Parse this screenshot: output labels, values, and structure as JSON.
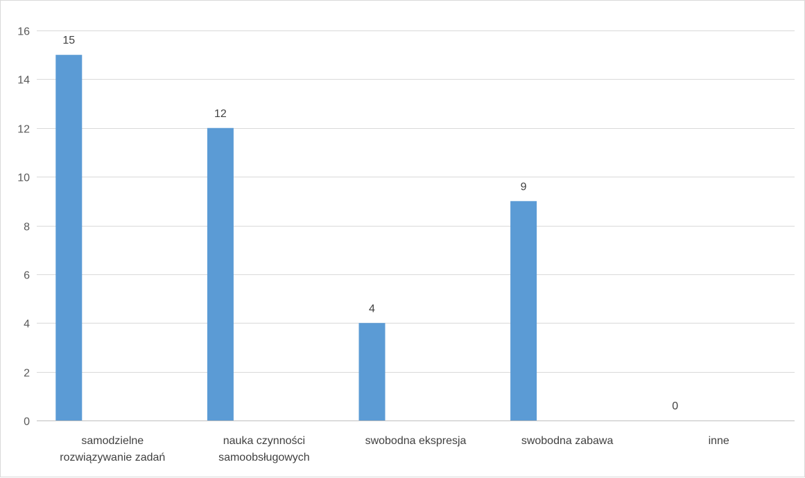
{
  "chart_data": {
    "type": "bar",
    "categories": [
      [
        "samodzielne",
        "rozwiązywanie zadań"
      ],
      [
        "nauka czynności",
        "samoobsługowych"
      ],
      [
        "swobodna ekspresja"
      ],
      [
        "swobodna zabawa"
      ],
      [
        "inne"
      ]
    ],
    "values": [
      15,
      12,
      4,
      9,
      0
    ],
    "data_labels": [
      "15",
      "12",
      "4",
      "9",
      "0"
    ],
    "ylim": [
      0,
      16
    ],
    "yticks": [
      0,
      2,
      4,
      6,
      8,
      10,
      12,
      14,
      16
    ],
    "title": "",
    "xlabel": "",
    "ylabel": "",
    "grid": true,
    "legend": "none",
    "colors": {
      "bar": "#5B9BD5",
      "grid": "#d9d9d9",
      "axis": "#bfbfbf"
    }
  }
}
